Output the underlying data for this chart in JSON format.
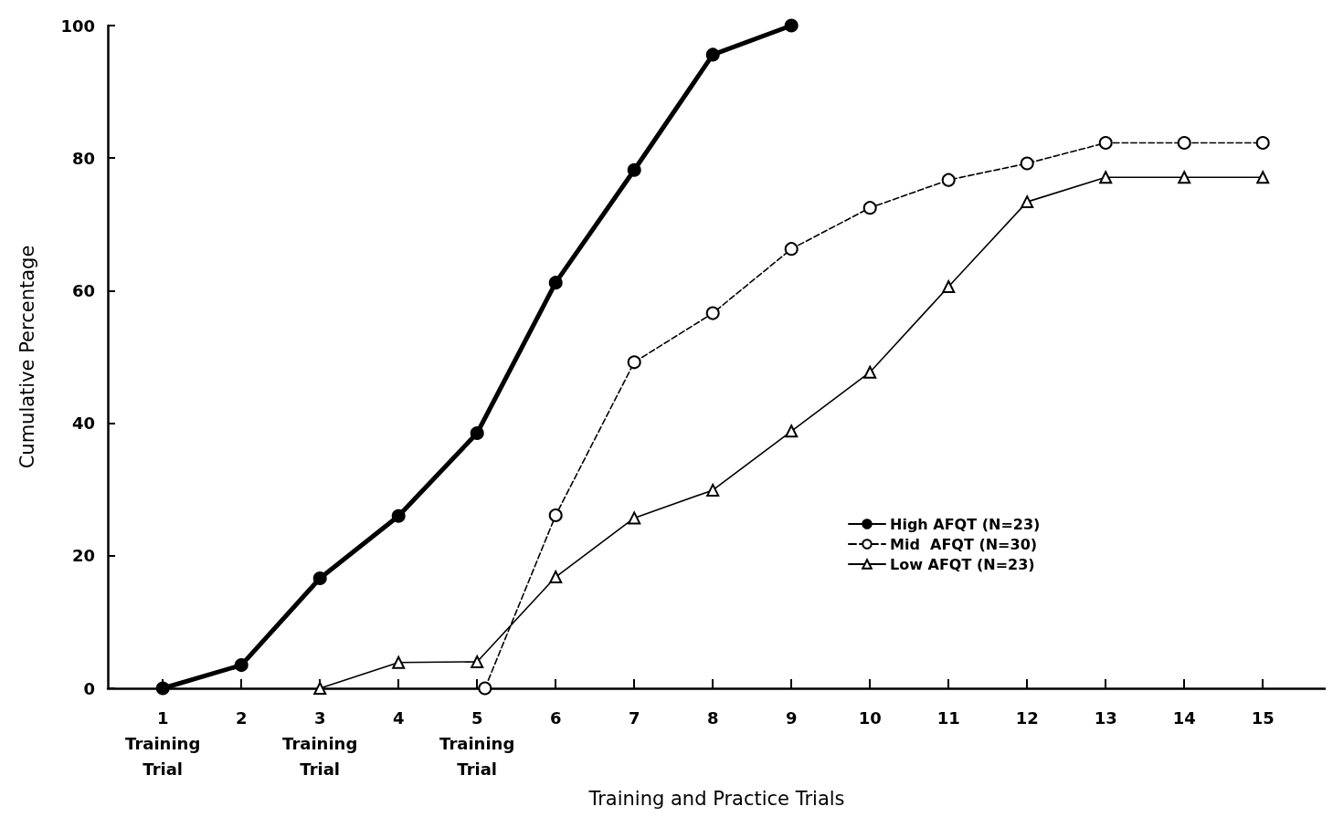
{
  "chart_data": {
    "type": "line",
    "xlabel": "Training and Practice Trials",
    "ylabel": "Cumulative Percentage",
    "xlim": [
      0.3,
      15.8
    ],
    "xticks": [
      {
        "value": 1,
        "label": "1\nTraining\nTrial"
      },
      2,
      {
        "value": 3,
        "label": "3\nTraining\nTrial"
      },
      4,
      {
        "value": 5,
        "label": "5\nTraining\nTrial"
      },
      6,
      7,
      8,
      9,
      10,
      11,
      12,
      13,
      14,
      15
    ],
    "ylim": [
      0,
      100
    ],
    "yticks": [
      0,
      20,
      40,
      60,
      80,
      100
    ],
    "grid": false,
    "legend": "right",
    "series": [
      {
        "name": "High AFQT (N=23)",
        "color": "#000000",
        "marker": "circle",
        "line_style": "solid",
        "x": [
          1,
          2,
          3,
          4,
          5,
          6,
          7,
          8,
          9
        ],
        "values": [
          0,
          3.5,
          16.6,
          26,
          38.5,
          61.2,
          78.2,
          95.6,
          100
        ]
      },
      {
        "name": "Mid  AFQT (N=30)",
        "color": "#000000",
        "marker": "circle",
        "line_style": "dashed",
        "x": [
          5.1,
          6,
          7,
          8,
          9,
          10,
          11,
          12,
          13,
          14,
          15
        ],
        "values": [
          0,
          26.1,
          49.2,
          56.6,
          66.3,
          72.5,
          76.7,
          79.2,
          82.3,
          82.3,
          82.3
        ]
      },
      {
        "name": "Low AFQT (N=23)",
        "color": "#000000",
        "marker": "triangle",
        "line_style": "solid",
        "x": [
          3,
          4,
          5,
          6,
          7,
          8,
          9,
          10,
          11,
          12,
          13,
          14,
          15
        ],
        "values": [
          0,
          3.9,
          4.0,
          16.8,
          25.7,
          29.9,
          38.8,
          47.7,
          60.6,
          73.4,
          77.1,
          77.1,
          77.1
        ]
      }
    ]
  }
}
